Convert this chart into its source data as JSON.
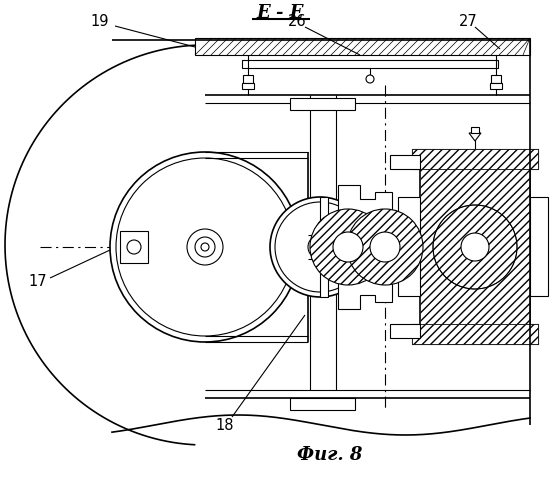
{
  "bg_color": "#ffffff",
  "line_color": "#000000",
  "title": "Фиг. 8",
  "section_label": "Е - Е",
  "figsize": [
    5.52,
    5.0
  ],
  "dpi": 100
}
